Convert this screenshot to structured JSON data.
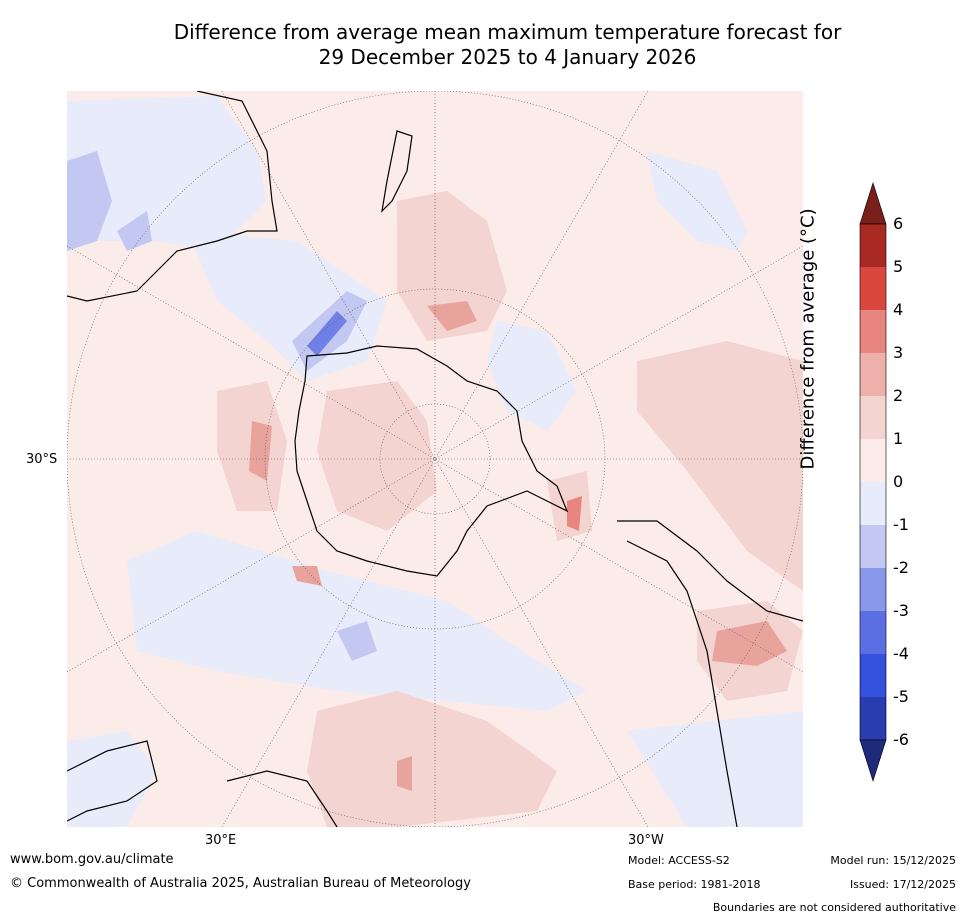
{
  "title_line1": "Difference from average mean maximum temperature forecast for",
  "title_line2": "29 December 2025 to 4 January 2026",
  "labels": {
    "lat": "30°S",
    "lon_left": "30°E",
    "lon_right": "30°W"
  },
  "colorbar": {
    "label": "Difference from average (°C)",
    "ticks": [
      "6",
      "5",
      "4",
      "3",
      "2",
      "1",
      "0",
      "-1",
      "-2",
      "-3",
      "-4",
      "-5",
      "-6"
    ],
    "colors_top_to_bottom": [
      "#7a1f1a",
      "#a82a22",
      "#d9473e",
      "#e8857e",
      "#eeb0aa",
      "#f4d4d0",
      "#fbecea",
      "#e8ebfa",
      "#c2c8f2",
      "#8a98ea",
      "#5c6ee4",
      "#3552df",
      "#2a3db0",
      "#1e2a7c"
    ]
  },
  "footer": {
    "url": "www.bom.gov.au/climate",
    "copyright": "© Commonwealth of Australia 2025, Australian Bureau of Meteorology",
    "model": "Model: ACCESS-S2",
    "base_period": "Base period: 1981-2018",
    "model_run": "Model run: 15/12/2025",
    "issued": "Issued: 17/12/2025",
    "disclaimer": "Boundaries are not considered authoritative"
  }
}
